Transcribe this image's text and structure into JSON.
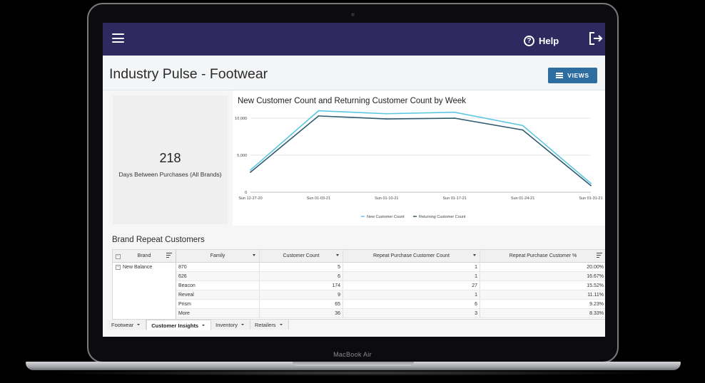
{
  "device": {
    "label": "MacBook Air"
  },
  "header": {
    "help_label": "Help"
  },
  "page": {
    "title": "Industry Pulse - Footwear",
    "views_label": "VIEWS"
  },
  "kpi": {
    "value": "218",
    "label": "Days Between Purchases (All Brands)"
  },
  "chart_data": {
    "type": "line",
    "title": "New Customer Count and Returning Customer Count by Week",
    "x": [
      "Sun 12-27-20",
      "Sun 01-03-21",
      "Sun 01-10-21",
      "Sun 01-17-21",
      "Sun 01-24-21",
      "Sun 01-31-21"
    ],
    "y_ticks": [
      "10,000",
      "5,000",
      "0"
    ],
    "ylim": [
      0,
      10000
    ],
    "series": [
      {
        "name": "New Customer Count",
        "color": "#5cc8e0",
        "values": [
          3000,
          11000,
          10600,
          10800,
          9000,
          1200
        ]
      },
      {
        "name": "Returning Customer Count",
        "color": "#2f5a6e",
        "values": [
          2700,
          10300,
          9900,
          10000,
          8400,
          900
        ]
      }
    ],
    "legend": "bottom-center",
    "grid": true
  },
  "table": {
    "title": "Brand Repeat Customers",
    "headers": {
      "brand": "Brand",
      "family": "Family",
      "customer_count": "Customer Count",
      "repeat_count": "Repeat Purchase Customer Count",
      "repeat_pct": "Repeat Purchase Customer %"
    },
    "brand_rows": [
      {
        "minus": "−",
        "brand": "New Balance"
      }
    ],
    "rows": [
      {
        "family": "870",
        "customer_count": "5",
        "repeat_count": "1",
        "repeat_pct": "20.00%"
      },
      {
        "family": "626",
        "customer_count": "6",
        "repeat_count": "1",
        "repeat_pct": "16.67%"
      },
      {
        "family": "Beacon",
        "customer_count": "174",
        "repeat_count": "27",
        "repeat_pct": "15.52%"
      },
      {
        "family": "Reveal",
        "customer_count": "9",
        "repeat_count": "1",
        "repeat_pct": "11.11%"
      },
      {
        "family": "Prism",
        "customer_count": "65",
        "repeat_count": "6",
        "repeat_pct": "9.23%"
      },
      {
        "family": "More",
        "customer_count": "36",
        "repeat_count": "3",
        "repeat_pct": "8.33%"
      }
    ]
  },
  "tabs": [
    {
      "label": "Footwear",
      "active": false
    },
    {
      "label": "Customer Insights",
      "active": true
    },
    {
      "label": "Inventory",
      "active": false
    },
    {
      "label": "Retailers",
      "active": false
    }
  ]
}
